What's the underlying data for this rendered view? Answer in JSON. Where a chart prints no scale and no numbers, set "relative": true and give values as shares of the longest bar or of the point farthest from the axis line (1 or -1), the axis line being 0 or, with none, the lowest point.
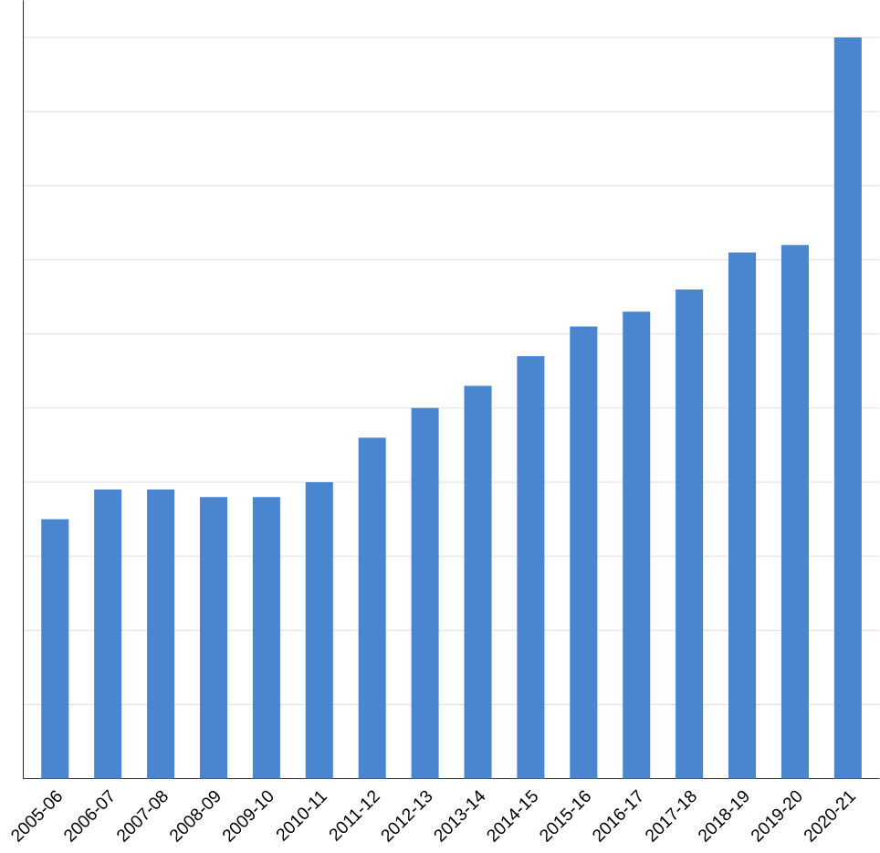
{
  "chart_data": {
    "type": "bar",
    "relative": true,
    "grid": "y",
    "color": "#4a86d0",
    "categories": [
      "2005-06",
      "2006-07",
      "2007-08",
      "2008-09",
      "2009-10",
      "2010-11",
      "2011-12",
      "2012-13",
      "2013-14",
      "2014-15",
      "2015-16",
      "2016-17",
      "2017-18",
      "2018-19",
      "2019-20",
      "2020-21"
    ],
    "values": [
      0.35,
      0.39,
      0.39,
      0.38,
      0.38,
      0.4,
      0.46,
      0.5,
      0.53,
      0.57,
      0.61,
      0.63,
      0.66,
      0.71,
      0.72,
      1
    ]
  }
}
